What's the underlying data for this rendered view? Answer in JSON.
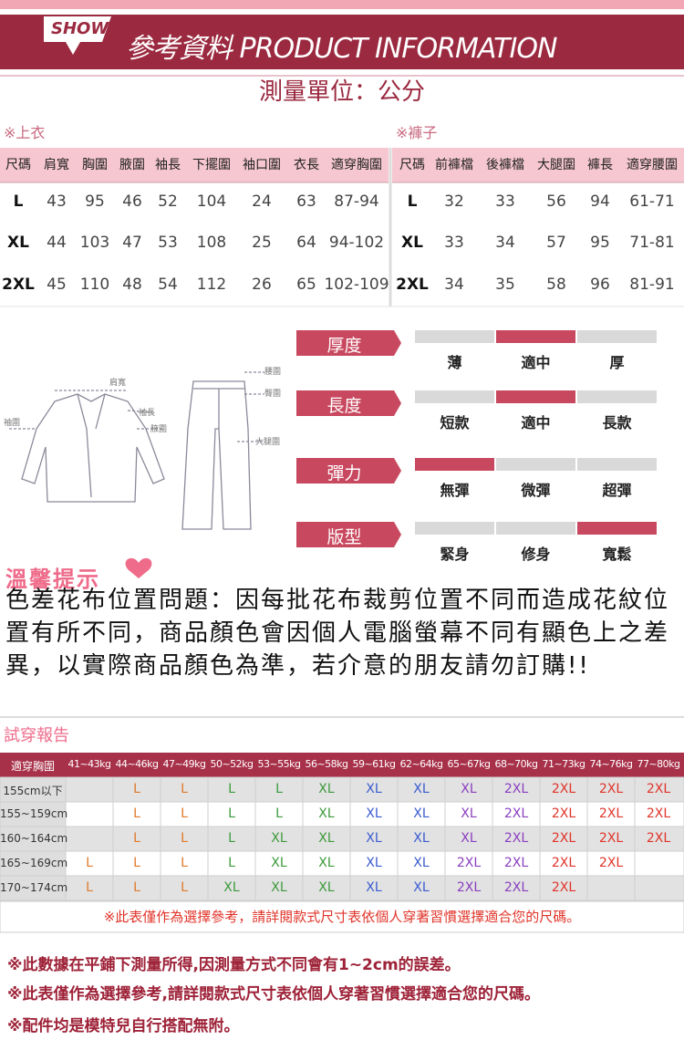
{
  "header": {
    "tag": "SHOW",
    "title": "參考資料 PRODUCT INFORMATION"
  },
  "unit": "測量單位：公分",
  "tops": {
    "label": "※上衣",
    "columns": [
      "尺碼",
      "肩寬",
      "胸圍",
      "腋圍",
      "袖長",
      "下擺圍",
      "袖口圍",
      "衣長",
      "適穿胸圍"
    ],
    "rows": [
      [
        "L",
        "43",
        "95",
        "46",
        "52",
        "104",
        "24",
        "63",
        "87-94"
      ],
      [
        "XL",
        "44",
        "103",
        "47",
        "53",
        "108",
        "25",
        "64",
        "94-102"
      ],
      [
        "2XL",
        "45",
        "110",
        "48",
        "54",
        "112",
        "26",
        "65",
        "102-109"
      ]
    ]
  },
  "pants": {
    "label": "※褲子",
    "columns": [
      "尺碼",
      "前褲檔",
      "後褲檔",
      "大腿圍",
      "褲長",
      "適穿腰圍"
    ],
    "rows": [
      [
        "L",
        "32",
        "33",
        "56",
        "94",
        "61-71"
      ],
      [
        "XL",
        "33",
        "34",
        "57",
        "95",
        "71-81"
      ],
      [
        "2XL",
        "34",
        "35",
        "58",
        "96",
        "81-91"
      ]
    ]
  },
  "diagram": {
    "labels": [
      "肩寬",
      "袖長",
      "腋圍",
      "袖圍",
      "腰圍",
      "臀圍",
      "大腿圍"
    ]
  },
  "ratings": [
    {
      "name": "厚度",
      "options": [
        "薄",
        "適中",
        "厚"
      ],
      "selected": 1
    },
    {
      "name": "長度",
      "options": [
        "短款",
        "適中",
        "長款"
      ],
      "selected": 1
    },
    {
      "name": "彈力",
      "options": [
        "無彈",
        "微彈",
        "超彈"
      ],
      "selected": 0
    },
    {
      "name": "版型",
      "options": [
        "緊身",
        "修身",
        "寬鬆"
      ],
      "selected": 2
    }
  ],
  "tip": {
    "title": "溫馨提示",
    "text": "色差花布位置問題：因每批花布裁剪位置不同而造成花紋位置有所不同，商品顏色會因個人電腦螢幕不同有顯色上之差異，以實際商品顏色為準，若介意的朋友請勿訂購!!"
  },
  "fitting": {
    "title": "試穿報告",
    "corner": "適穿胸圍",
    "weights": [
      "41~43kg",
      "44~46kg",
      "47~49kg",
      "50~52kg",
      "53~55kg",
      "56~58kg",
      "59~61kg",
      "62~64kg",
      "65~67kg",
      "68~70kg",
      "71~73kg",
      "74~76kg",
      "77~80kg"
    ],
    "column_colors": [
      "#e07a2a",
      "#e07a2a",
      "#e07a2a",
      "#3c9a3c",
      "#3c9a3c",
      "#3c9a3c",
      "#3a5bd0",
      "#3a5bd0",
      "#8a3fc0",
      "#8a3fc0",
      "#e0342a",
      "#e0342a",
      "#e0342a"
    ],
    "rows": [
      {
        "height": "155cm以下",
        "sizes": [
          null,
          "L",
          "L",
          "L",
          "L",
          "XL",
          "XL",
          "XL",
          "XL",
          "2XL",
          "2XL",
          "2XL",
          "2XL"
        ]
      },
      {
        "height": "155~159cm",
        "sizes": [
          null,
          "L",
          "L",
          "L",
          "L",
          "XL",
          "XL",
          "XL",
          "XL",
          "2XL",
          "2XL",
          "2XL",
          "2XL"
        ]
      },
      {
        "height": "160~164cm",
        "sizes": [
          null,
          "L",
          "L",
          "L",
          "XL",
          "XL",
          "XL",
          "XL",
          "XL",
          "2XL",
          "2XL",
          "2XL",
          "2XL"
        ]
      },
      {
        "height": "165~169cm",
        "sizes": [
          "L",
          "L",
          "L",
          "L",
          "XL",
          "XL",
          "XL",
          "XL",
          "2XL",
          "2XL",
          "2XL",
          "2XL",
          null
        ]
      },
      {
        "height": "170~174cm",
        "sizes": [
          "L",
          "L",
          "L",
          "XL",
          "XL",
          "XL",
          "XL",
          "XL",
          "2XL",
          "2XL",
          "2XL",
          null,
          null
        ]
      }
    ],
    "note": "※此表僅作為選擇參考，請詳閱款式尺寸表依個人穿著習慣選擇適合您的尺碼。"
  },
  "notes": [
    "※此數據在平鋪下測量所得,因測量方式不同會有1~2cm的誤差。",
    "※此表僅作為選擇參考,請詳閱款式尺寸表依個人穿著習慣選擇適合您的尺碼。",
    "※配件均是模特兒自行搭配無附。"
  ]
}
